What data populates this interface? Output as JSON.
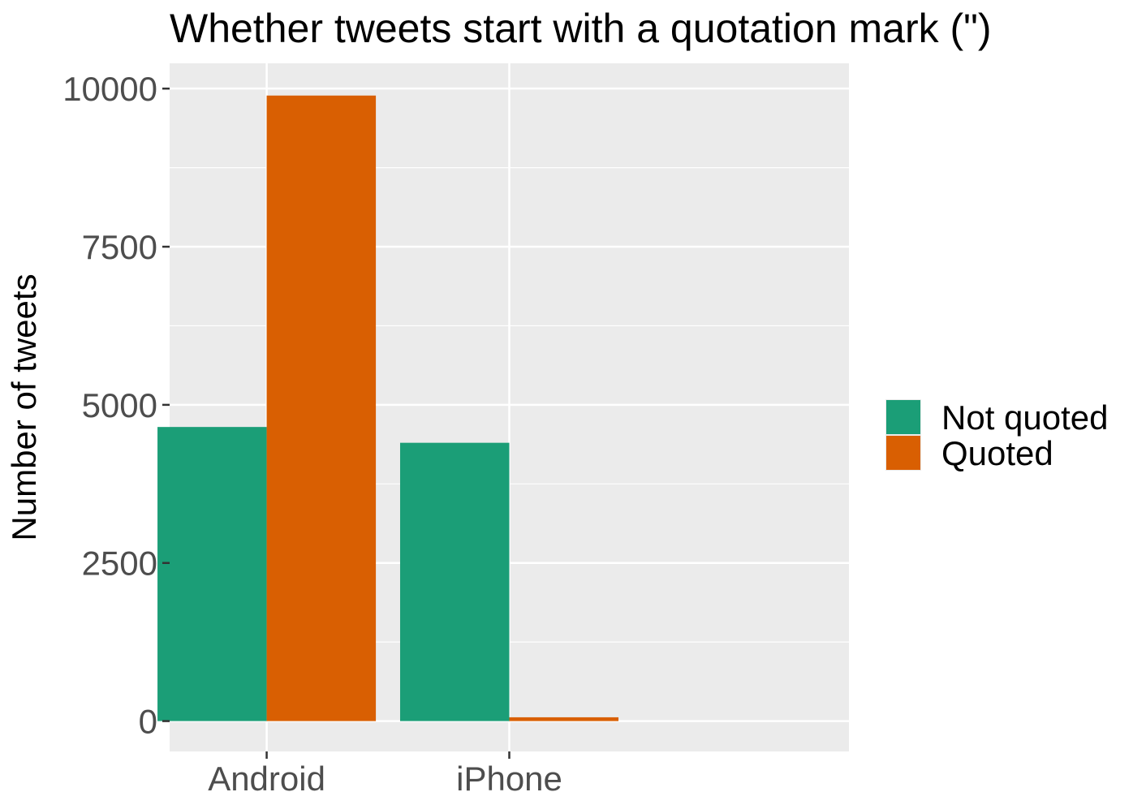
{
  "chart_data": {
    "type": "bar",
    "title": "Whether tweets start with a quotation mark (\")",
    "xlabel": "",
    "ylabel": "Number of tweets",
    "categories": [
      "Android",
      "iPhone"
    ],
    "series": [
      {
        "name": "Not quoted",
        "color": "#1b9e77",
        "values": [
          4650,
          4400
        ]
      },
      {
        "name": "Quoted",
        "color": "#d95f02",
        "values": [
          9890,
          60
        ]
      }
    ],
    "ylim": [
      -480,
      10400
    ],
    "yticks": [
      0,
      2500,
      5000,
      7500,
      10000
    ],
    "grid": true,
    "legend_position": "right",
    "panel_background": "#ebebeb"
  }
}
